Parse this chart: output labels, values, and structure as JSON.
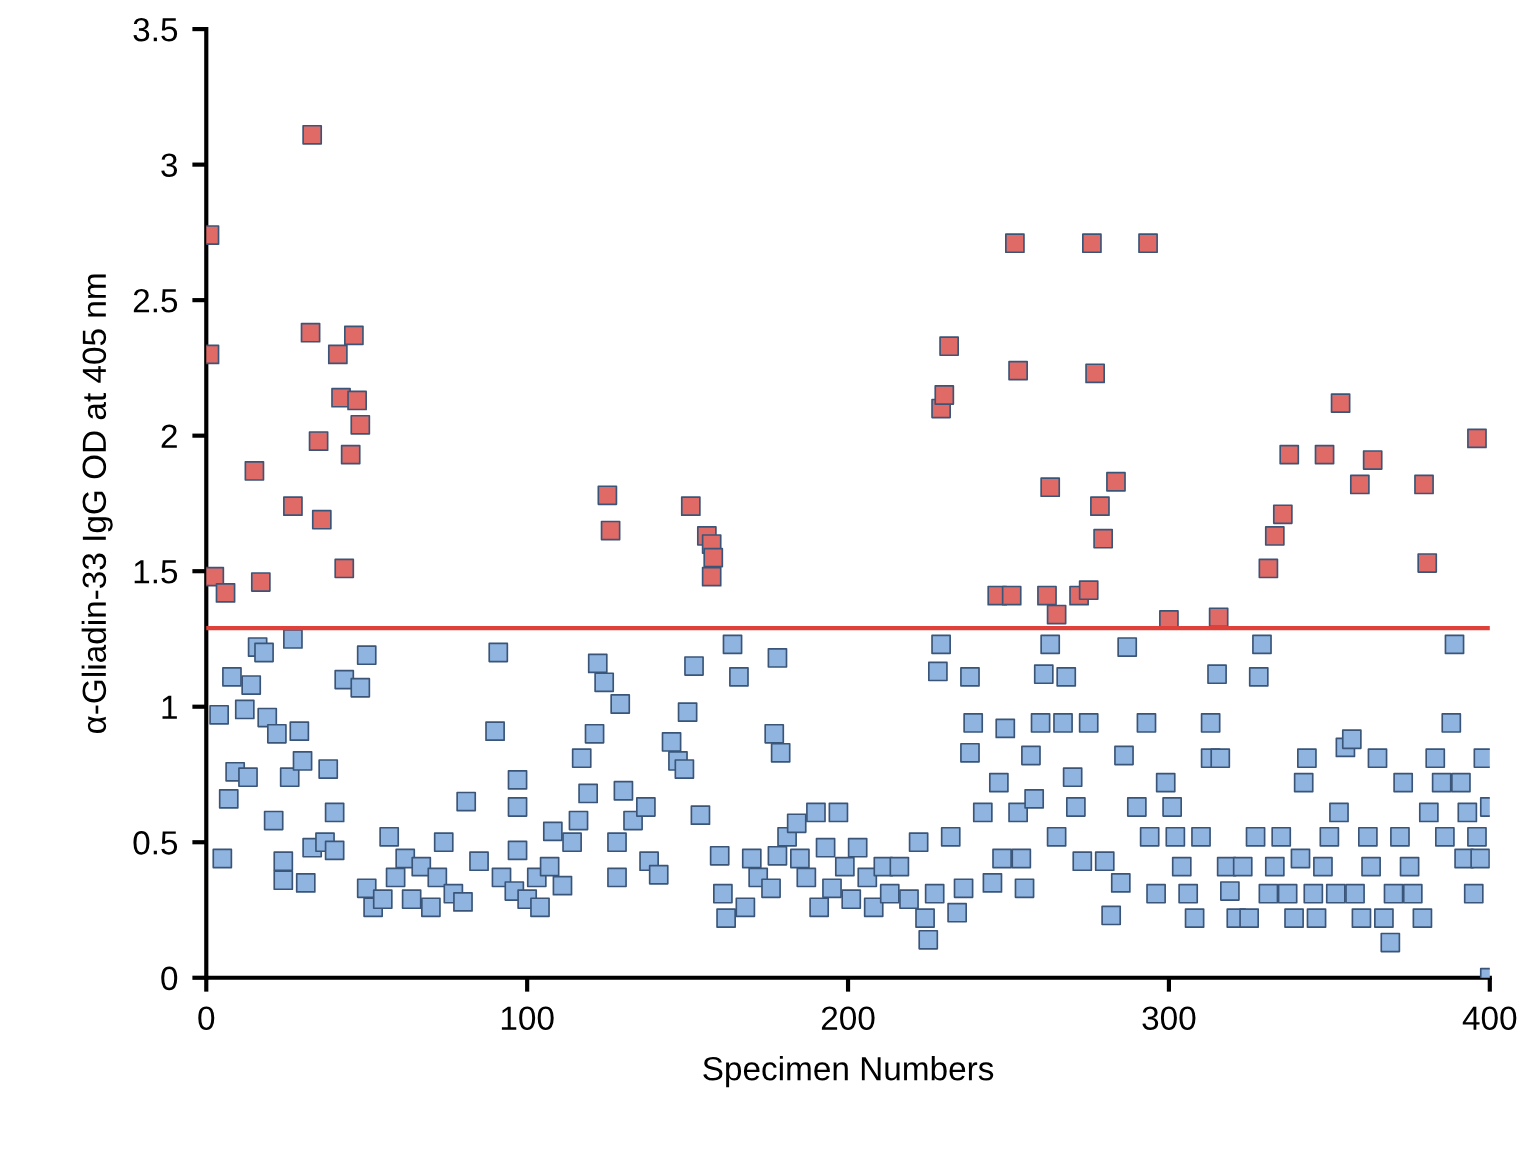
{
  "chart_data": {
    "type": "scatter",
    "xlabel": "Specimen Numbers",
    "ylabel": "α-Gliadin-33 IgG OD at 405 nm",
    "xlim": [
      0,
      400
    ],
    "xticks": [
      0,
      100,
      200,
      300,
      400
    ],
    "ylim": [
      0,
      3.5
    ],
    "yticks": [
      0,
      0.5,
      1,
      1.5,
      2,
      2.5,
      3,
      3.5
    ],
    "grid": false,
    "legend": false,
    "marker": "square",
    "ref_lines": [
      {
        "axis": "y",
        "value": 1.29,
        "color": "#e0403a",
        "line_style": "solid"
      }
    ],
    "series": [
      {
        "color": "#e06a66",
        "x": [
          1,
          1,
          2.5,
          6,
          15,
          17,
          27,
          33,
          32.5,
          35,
          36,
          41,
          42,
          43,
          45,
          46,
          47,
          48,
          125,
          126,
          151,
          156,
          157.5,
          158,
          157.5,
          229,
          230,
          231.5,
          246.5,
          251,
          252,
          253,
          262,
          263,
          265,
          272,
          275,
          276,
          277,
          278.5,
          279.5,
          283.5,
          293.5,
          300,
          315.5,
          331,
          333,
          335.5,
          337.5,
          348.5,
          353.5,
          359.5,
          363.5,
          379.5,
          380.5,
          396
        ],
        "values": [
          2.74,
          2.3,
          1.48,
          1.42,
          1.87,
          1.46,
          1.74,
          3.11,
          2.38,
          1.98,
          1.69,
          2.3,
          2.14,
          1.51,
          1.93,
          2.37,
          2.13,
          2.04,
          1.78,
          1.65,
          1.74,
          1.63,
          1.6,
          1.55,
          1.48,
          2.1,
          2.15,
          2.33,
          1.41,
          1.41,
          2.71,
          2.24,
          1.41,
          1.81,
          1.34,
          1.41,
          1.43,
          2.71,
          2.23,
          1.74,
          1.62,
          1.83,
          2.71,
          1.32,
          1.33,
          1.51,
          1.63,
          1.71,
          1.93,
          1.93,
          2.12,
          1.82,
          1.91,
          1.82,
          1.53,
          1.99
        ]
      },
      {
        "color": "#8fb4e0",
        "x": [
          4,
          5,
          8,
          9,
          7,
          12,
          14,
          13,
          16,
          18,
          19,
          21,
          22,
          24,
          24,
          26,
          27,
          29,
          30,
          31,
          33,
          37,
          38,
          40,
          40,
          43,
          48,
          50,
          50,
          52,
          55,
          57,
          59,
          62,
          64,
          67,
          70,
          72,
          74,
          77,
          80,
          81,
          85,
          91,
          90,
          92,
          96,
          97,
          97,
          97,
          100,
          103,
          104,
          107,
          108,
          111,
          114,
          116,
          117,
          119,
          121,
          122,
          124,
          129,
          128,
          128,
          130,
          133,
          137,
          138,
          141,
          145,
          147,
          149,
          150,
          152,
          154,
          160,
          161,
          162,
          164,
          166,
          168,
          170,
          172,
          176,
          178,
          178,
          177,
          179,
          181,
          184,
          185,
          187,
          190,
          191,
          193,
          195,
          197,
          199,
          201,
          203,
          206,
          208,
          211,
          213,
          216,
          219,
          222,
          224,
          225,
          227,
          228,
          229,
          232,
          234,
          236,
          238,
          239,
          238,
          242,
          245,
          247,
          248,
          249,
          253,
          254,
          255,
          257,
          258,
          260,
          261,
          263,
          265,
          267,
          268,
          270,
          271,
          273,
          275,
          280,
          282,
          285,
          286,
          287,
          290,
          293,
          294,
          296,
          299,
          301,
          302,
          304,
          306,
          308,
          310,
          313,
          313,
          315,
          316,
          318,
          319,
          321,
          323,
          325,
          327,
          328,
          329,
          331,
          333,
          335,
          337,
          339,
          341,
          342,
          343,
          345,
          346,
          348,
          350,
          352,
          353,
          355,
          357,
          358,
          360,
          362,
          363,
          365,
          367,
          369,
          370,
          372,
          373,
          375,
          376,
          379,
          381,
          383,
          385,
          386,
          388,
          389,
          391,
          392,
          393,
          395,
          396,
          397,
          398,
          400,
          400
        ],
        "values": [
          0.97,
          0.44,
          1.11,
          0.76,
          0.66,
          0.99,
          1.08,
          0.74,
          1.22,
          1.2,
          0.96,
          0.58,
          0.9,
          0.43,
          0.36,
          0.74,
          1.25,
          0.91,
          0.8,
          0.35,
          0.48,
          0.5,
          0.77,
          0.61,
          0.47,
          1.1,
          1.07,
          1.19,
          0.33,
          0.26,
          0.29,
          0.52,
          0.37,
          0.44,
          0.29,
          0.41,
          0.26,
          0.37,
          0.5,
          0.31,
          0.28,
          0.65,
          0.43,
          1.2,
          0.91,
          0.37,
          0.32,
          0.73,
          0.63,
          0.47,
          0.29,
          0.37,
          0.26,
          0.41,
          0.54,
          0.34,
          0.5,
          0.58,
          0.81,
          0.68,
          0.9,
          1.16,
          1.09,
          1.01,
          0.5,
          0.37,
          0.69,
          0.58,
          0.63,
          0.43,
          0.38,
          0.87,
          0.8,
          0.77,
          0.98,
          1.15,
          0.6,
          0.45,
          0.31,
          0.22,
          1.23,
          1.11,
          0.26,
          0.44,
          0.37,
          0.33,
          0.45,
          1.18,
          0.9,
          0.83,
          0.52,
          0.57,
          0.44,
          0.37,
          0.61,
          0.26,
          0.48,
          0.33,
          0.61,
          0.41,
          0.29,
          0.48,
          0.37,
          0.26,
          0.41,
          0.31,
          0.41,
          0.29,
          0.5,
          0.22,
          0.14,
          0.31,
          1.13,
          1.23,
          0.52,
          0.24,
          0.33,
          1.11,
          0.94,
          0.83,
          0.61,
          0.35,
          0.72,
          0.44,
          0.92,
          0.61,
          0.44,
          0.33,
          0.82,
          0.66,
          0.94,
          1.12,
          1.23,
          0.52,
          0.94,
          1.11,
          0.74,
          0.63,
          0.43,
          0.94,
          0.43,
          0.23,
          0.35,
          0.82,
          1.22,
          0.63,
          0.94,
          0.52,
          0.31,
          0.72,
          0.63,
          0.52,
          0.41,
          0.31,
          0.22,
          0.52,
          0.81,
          0.94,
          1.12,
          0.81,
          0.41,
          0.32,
          0.22,
          0.41,
          0.22,
          0.52,
          1.11,
          1.23,
          0.31,
          0.41,
          0.52,
          0.31,
          0.22,
          0.44,
          0.72,
          0.81,
          0.31,
          0.22,
          0.41,
          0.52,
          0.31,
          0.61,
          0.85,
          0.88,
          0.31,
          0.22,
          0.52,
          0.41,
          0.81,
          0.22,
          0.13,
          0.31,
          0.52,
          0.72,
          0.41,
          0.31,
          0.22,
          0.61,
          0.81,
          0.72,
          0.52,
          0.94,
          1.23,
          0.72,
          0.44,
          0.61,
          0.31,
          0.52,
          0.44,
          0.81,
          0.63,
          0
        ]
      }
    ]
  }
}
